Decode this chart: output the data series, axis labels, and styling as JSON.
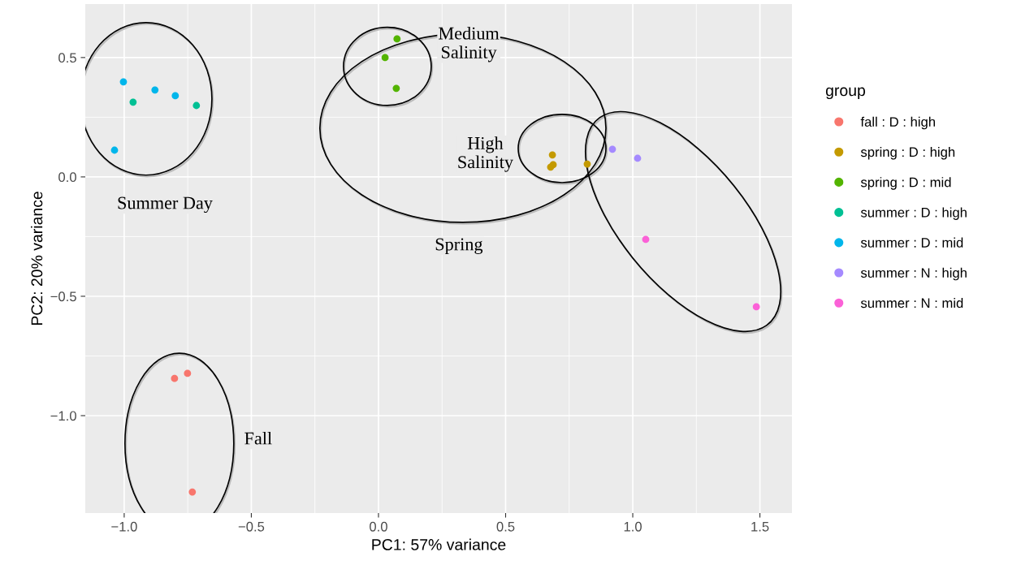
{
  "chart_data": {
    "type": "scatter",
    "xlabel": "PC1: 57% variance",
    "ylabel": "PC2: 20% variance",
    "legend_title": "group",
    "legend": "right",
    "grid": true,
    "marker": "circle",
    "xlim": [
      -1.153,
      1.626
    ],
    "ylim": [
      -1.408,
      0.724
    ],
    "xticks": [
      {
        "value": -1.0,
        "label": "−1.0"
      },
      {
        "value": -0.5,
        "label": "−0.5"
      },
      {
        "value": 0.0,
        "label": "0.0"
      },
      {
        "value": 0.5,
        "label": "0.5"
      },
      {
        "value": 1.0,
        "label": "1.0"
      },
      {
        "value": 1.5,
        "label": "1.5"
      }
    ],
    "yticks": [
      {
        "value": -1.0,
        "label": "−1.0"
      },
      {
        "value": -0.5,
        "label": "−0.5"
      },
      {
        "value": 0.0,
        "label": "0.0"
      },
      {
        "value": 0.5,
        "label": "0.5"
      }
    ],
    "series": [
      {
        "name": "fall : D : high",
        "color": "#f8766d",
        "x": [
          -0.802,
          -0.751,
          -0.732
        ],
        "values": [
          -0.844,
          -0.823,
          -1.32
        ]
      },
      {
        "name": "spring : D : high",
        "color": "#c49a00",
        "x": [
          0.684,
          0.687,
          0.677,
          0.821
        ],
        "values": [
          0.092,
          0.051,
          0.041,
          0.054
        ]
      },
      {
        "name": "spring : D : mid",
        "color": "#53b400",
        "x": [
          0.073,
          0.026,
          0.07
        ],
        "values": [
          0.578,
          0.5,
          0.371
        ]
      },
      {
        "name": "summer : D : high",
        "color": "#00c094",
        "x": [
          -0.965,
          -0.716
        ],
        "values": [
          0.313,
          0.299
        ]
      },
      {
        "name": "summer : D : mid",
        "color": "#00b6eb",
        "x": [
          -1.003,
          -0.879,
          -0.799,
          -1.038
        ],
        "values": [
          0.398,
          0.364,
          0.34,
          0.112
        ]
      },
      {
        "name": "summer : N : high",
        "color": "#a58aff",
        "x": [
          0.92,
          1.019
        ],
        "values": [
          0.116,
          0.078
        ]
      },
      {
        "name": "summer : N : mid",
        "color": "#fb61d7",
        "x": [
          1.051,
          1.486
        ],
        "values": [
          -0.262,
          -0.544
        ]
      }
    ],
    "annotations": [
      "Medium\nSalinity",
      "High\nSalinity",
      "Summer Day",
      "Spring",
      "Fall"
    ]
  }
}
